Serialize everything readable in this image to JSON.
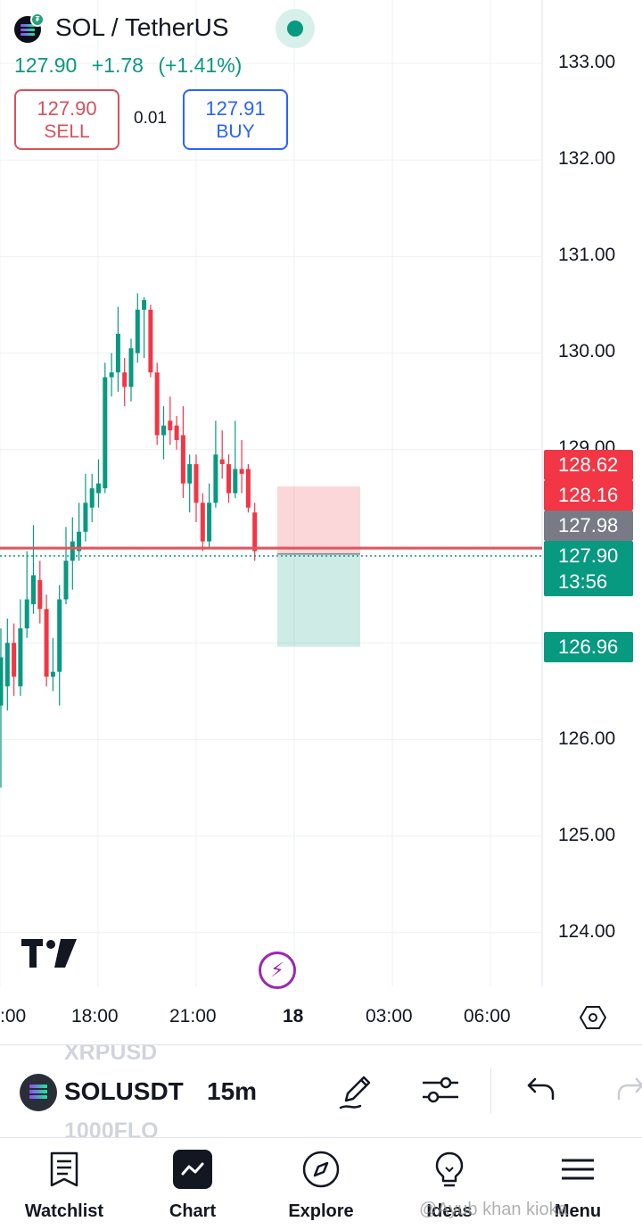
{
  "header": {
    "symbol_title": "SOL / TetherUS",
    "last_price": "127.90",
    "change": "+1.78",
    "change_pct": "(+1.41%)",
    "sell_price": "127.90",
    "sell_label": "SELL",
    "spread": "0.01",
    "buy_price": "127.91",
    "buy_label": "BUY"
  },
  "colors": {
    "up": "#089981",
    "down": "#f23645",
    "sell": "#d8505c",
    "buy": "#2962ff",
    "accent_purple": "#9c27b0"
  },
  "price_axis": {
    "ticks": [
      "133.00",
      "132.00",
      "131.00",
      "130.00",
      "129.00",
      "126.00",
      "125.00",
      "124.00"
    ],
    "labels": {
      "take_profit_top": "128.62",
      "stop_line": "128.16",
      "horizontal_line": "127.98",
      "last_price": "127.90",
      "countdown": "13:56",
      "target_bottom": "126.96"
    }
  },
  "time_axis": {
    "labels": [
      ":00",
      "18:00",
      "21:00",
      "18",
      "03:00",
      "06:00"
    ]
  },
  "chart_data": {
    "type": "candlestick",
    "interval": "15m",
    "grid": true,
    "ylim": [
      123.6,
      133.6
    ],
    "candles": [
      {
        "o": 126.35,
        "c": 126.85,
        "h": 127.15,
        "l": 125.5
      },
      {
        "o": 126.55,
        "c": 127.0,
        "h": 127.25,
        "l": 126.3
      },
      {
        "o": 127.0,
        "c": 126.65,
        "h": 127.2,
        "l": 126.45
      },
      {
        "o": 126.55,
        "c": 127.15,
        "h": 127.45,
        "l": 126.45
      },
      {
        "o": 127.15,
        "c": 127.45,
        "h": 127.95,
        "l": 127.05
      },
      {
        "o": 127.4,
        "c": 127.7,
        "h": 128.22,
        "l": 127.3
      },
      {
        "o": 127.65,
        "c": 127.35,
        "h": 127.85,
        "l": 127.2
      },
      {
        "o": 127.35,
        "c": 126.65,
        "h": 127.5,
        "l": 126.55
      },
      {
        "o": 126.65,
        "c": 126.7,
        "h": 127.05,
        "l": 126.5
      },
      {
        "o": 126.7,
        "c": 127.45,
        "h": 127.6,
        "l": 126.35
      },
      {
        "o": 127.45,
        "c": 127.85,
        "h": 128.2,
        "l": 127.4
      },
      {
        "o": 127.85,
        "c": 128.05,
        "h": 128.3,
        "l": 127.55
      },
      {
        "o": 127.95,
        "c": 128.15,
        "h": 128.45,
        "l": 127.85
      },
      {
        "o": 128.15,
        "c": 128.45,
        "h": 128.75,
        "l": 128.05
      },
      {
        "o": 128.4,
        "c": 128.6,
        "h": 128.75,
        "l": 128.25
      },
      {
        "o": 128.55,
        "c": 128.65,
        "h": 128.9,
        "l": 128.4
      },
      {
        "o": 128.6,
        "c": 129.75,
        "h": 129.9,
        "l": 128.55
      },
      {
        "o": 129.75,
        "c": 129.8,
        "h": 130.0,
        "l": 129.55
      },
      {
        "o": 129.8,
        "c": 130.2,
        "h": 130.48,
        "l": 129.6
      },
      {
        "o": 129.8,
        "c": 129.65,
        "h": 129.95,
        "l": 129.45
      },
      {
        "o": 129.65,
        "c": 130.05,
        "h": 130.15,
        "l": 129.5
      },
      {
        "o": 130.0,
        "c": 130.45,
        "h": 130.62,
        "l": 129.9
      },
      {
        "o": 130.45,
        "c": 130.55,
        "h": 130.58,
        "l": 129.95
      },
      {
        "o": 130.45,
        "c": 129.8,
        "h": 130.5,
        "l": 129.75
      },
      {
        "o": 129.8,
        "c": 129.15,
        "h": 129.9,
        "l": 129.05
      },
      {
        "o": 129.15,
        "c": 129.25,
        "h": 129.45,
        "l": 128.9
      },
      {
        "o": 129.3,
        "c": 129.2,
        "h": 129.55,
        "l": 129.05
      },
      {
        "o": 129.25,
        "c": 129.1,
        "h": 129.35,
        "l": 129.0
      },
      {
        "o": 129.15,
        "c": 128.65,
        "h": 129.45,
        "l": 128.5
      },
      {
        "o": 128.65,
        "c": 128.85,
        "h": 128.95,
        "l": 128.35
      },
      {
        "o": 128.85,
        "c": 128.45,
        "h": 128.95,
        "l": 128.25
      },
      {
        "o": 128.45,
        "c": 128.05,
        "h": 128.55,
        "l": 127.95
      },
      {
        "o": 128.05,
        "c": 128.45,
        "h": 128.65,
        "l": 127.98
      },
      {
        "o": 128.45,
        "c": 128.95,
        "h": 129.3,
        "l": 128.4
      },
      {
        "o": 128.9,
        "c": 128.85,
        "h": 129.2,
        "l": 128.7
      },
      {
        "o": 128.85,
        "c": 128.55,
        "h": 128.95,
        "l": 128.45
      },
      {
        "o": 128.55,
        "c": 128.8,
        "h": 129.3,
        "l": 128.5
      },
      {
        "o": 128.8,
        "c": 128.75,
        "h": 129.1,
        "l": 128.55
      },
      {
        "o": 128.8,
        "c": 128.4,
        "h": 128.85,
        "l": 128.35
      },
      {
        "o": 128.35,
        "c": 127.95,
        "h": 128.45,
        "l": 127.85
      }
    ],
    "horizontal_line": 127.98,
    "position_tool": {
      "stop": 128.62,
      "entry": 127.92,
      "target": 126.96
    }
  },
  "toolbar": {
    "symbol": "SOLUSDT",
    "interval": "15m",
    "ghost_prev": "XRPUSD",
    "ghost_next": "1000FLO"
  },
  "nav": {
    "watchlist": "Watchlist",
    "chart": "Chart",
    "explore": "Explore",
    "ideas": "Ideas",
    "menu": "Menu"
  },
  "watermark": "@Ayub khan kioka"
}
